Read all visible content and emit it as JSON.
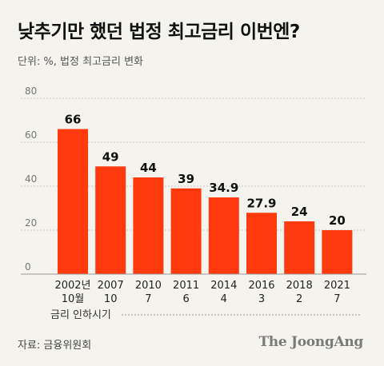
{
  "header": {
    "title": "낮추기만 했던 법정 최고금리 이번엔?",
    "subtitle": "단위: %, 법정 최고금리 변화"
  },
  "footer": {
    "source": "자료: 금융위원회",
    "brand": "The JoongAng"
  },
  "colors": {
    "bar": "#ff3a0f",
    "background": "#f4f3ee",
    "grid": "#c7c7c2",
    "axis_label": "#777777"
  },
  "chart_data": {
    "type": "bar",
    "title": "낮추기만 했던 법정 최고금리 이번엔?",
    "subtitle": "단위: %, 법정 최고금리 변화",
    "categories": [
      [
        "2002년",
        "10월"
      ],
      [
        "2007",
        "10"
      ],
      [
        "2010",
        "7"
      ],
      [
        "2011",
        "6"
      ],
      [
        "2014",
        "4"
      ],
      [
        "2016",
        "3"
      ],
      [
        "2018",
        "2"
      ],
      [
        "2021",
        "7"
      ]
    ],
    "values": [
      66,
      49,
      44,
      39,
      34.9,
      27.9,
      24,
      20
    ],
    "value_labels": [
      "66",
      "49",
      "44",
      "39",
      "34.9",
      "27.9",
      "24",
      "20"
    ],
    "xlabel": "금리 인하시기",
    "ylabel": "",
    "ylim": [
      0,
      80
    ],
    "yticks": [
      0,
      20,
      40,
      60,
      80
    ],
    "grid": true,
    "legend": "none"
  }
}
